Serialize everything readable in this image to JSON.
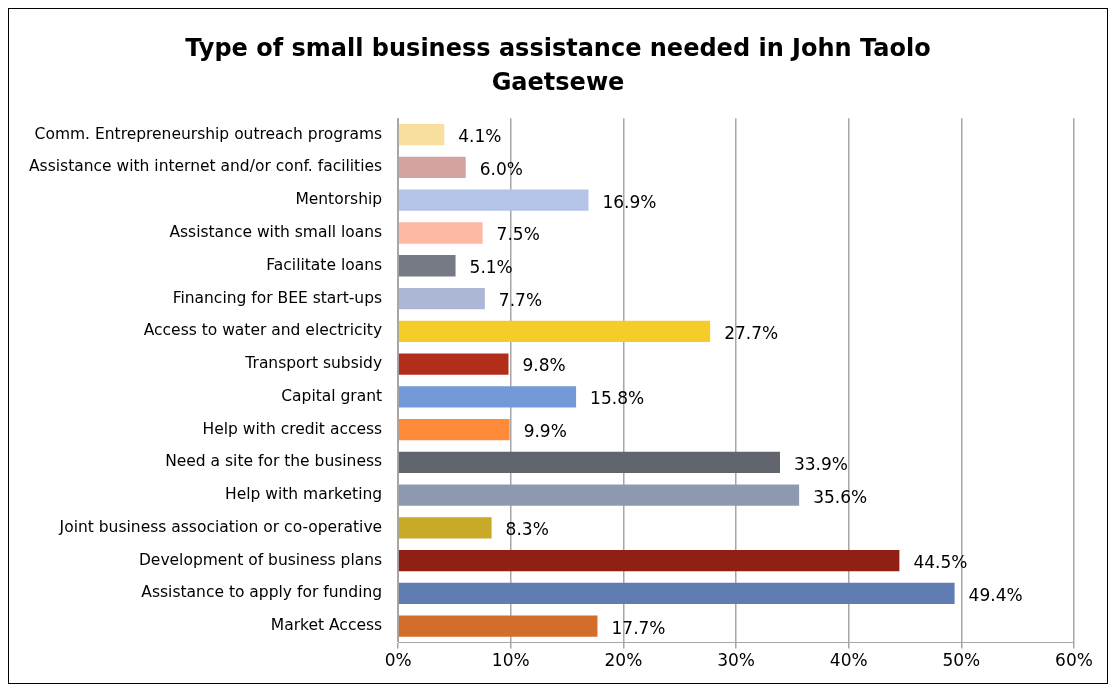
{
  "chart_data": {
    "type": "bar",
    "orientation": "horizontal",
    "title": "Type of small business assistance needed in John Taolo Gaetsewe",
    "categories": [
      "Comm. Entrepreneurship outreach programs",
      "Assistance with internet and/or conf. facilities",
      "Mentorship",
      "Assistance with small loans",
      "Facilitate loans",
      "Financing for BEE start-ups",
      "Access to water and electricity",
      "Transport subsidy",
      "Capital grant",
      "Help with credit access",
      "Need a site for the business",
      "Help with marketing",
      "Joint business association or co-operative",
      "Development of business plans",
      "Assistance to apply for funding",
      "Market Access"
    ],
    "values": [
      4.1,
      6.0,
      16.9,
      7.5,
      5.1,
      7.7,
      27.7,
      9.8,
      15.8,
      9.9,
      33.9,
      35.6,
      8.3,
      44.5,
      49.4,
      17.7
    ],
    "value_labels": [
      "4.1%",
      "6.0%",
      "16.9%",
      "7.5%",
      "5.1%",
      "7.7%",
      "27.7%",
      "9.8%",
      "15.8%",
      "9.9%",
      "33.9%",
      "35.6%",
      "8.3%",
      "44.5%",
      "49.4%",
      "17.7%"
    ],
    "colors": [
      "#f8dfa0",
      "#d4a3a1",
      "#b4c4e6",
      "#fdb9a3",
      "#767a84",
      "#abb7d4",
      "#f5cc2a",
      "#b12e1b",
      "#7399d8",
      "#fe8a3a",
      "#60656d",
      "#8e99b1",
      "#c9a928",
      "#912014",
      "#5f7cb3",
      "#d36d2c"
    ],
    "xlim": [
      0,
      60
    ],
    "xticks": [
      {
        "value": 0,
        "label": "0%"
      },
      {
        "value": 10,
        "label": "10%"
      },
      {
        "value": 20,
        "label": "20%"
      },
      {
        "value": 30,
        "label": "30%"
      },
      {
        "value": 40,
        "label": "40%"
      },
      {
        "value": 50,
        "label": "50%"
      },
      {
        "value": 60,
        "label": "60%"
      }
    ],
    "grid": "x",
    "legend": false
  }
}
